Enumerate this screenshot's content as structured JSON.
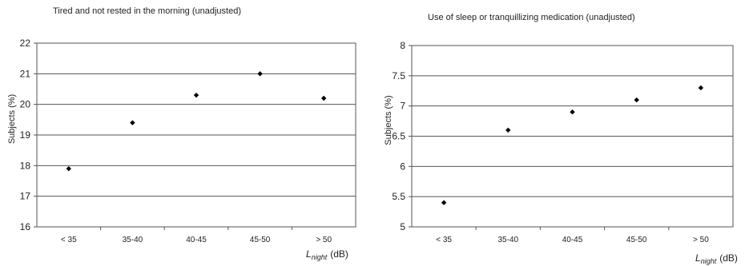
{
  "chart_data": [
    {
      "type": "scatter",
      "title": "Tired and not rested in the morning (unadjusted)",
      "categories": [
        "< 35",
        "35-40",
        "40-45",
        "45-50",
        "> 50"
      ],
      "values": [
        17.9,
        19.4,
        20.3,
        21.0,
        20.2
      ],
      "ylabel": "Subjects (%)",
      "xlabel_main": "L",
      "xlabel_sub": "night",
      "xlabel_unit": "(dB)",
      "ylim": [
        16,
        22
      ],
      "yticks": [
        "16",
        "17",
        "18",
        "19",
        "20",
        "21",
        "22"
      ],
      "grid": true
    },
    {
      "type": "scatter",
      "title": "Use of sleep or tranquillizing medication (unadjusted)",
      "categories": [
        "< 35",
        "35-40",
        "40-45",
        "45-50",
        "> 50"
      ],
      "values": [
        5.4,
        6.6,
        6.9,
        7.1,
        7.3
      ],
      "ylabel": "Subjects (%)",
      "xlabel_main": "L",
      "xlabel_sub": "night",
      "xlabel_unit": "(dB)",
      "ylim": [
        5,
        8
      ],
      "yticks": [
        "5",
        "5.5",
        "6",
        "6.5",
        "7",
        "7.5",
        "8"
      ],
      "grid": true
    }
  ]
}
